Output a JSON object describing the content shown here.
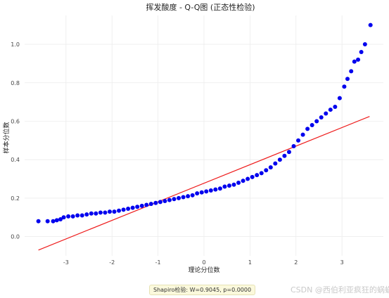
{
  "chart_data": {
    "type": "scatter",
    "title": "挥发酸度 - Q-Q图 (正态性检验)",
    "xlabel": "理论分位数",
    "ylabel": "样本分位数",
    "xlim": [
      -3.9,
      3.9
    ],
    "ylim": [
      -0.1,
      1.15
    ],
    "xticks": [
      -3,
      -2,
      -1,
      0,
      1,
      2,
      3
    ],
    "yticks": [
      0.0,
      0.2,
      0.4,
      0.6,
      0.8,
      1.0
    ],
    "ytick_labels": [
      "0.0",
      "0.2",
      "0.4",
      "0.6",
      "0.8",
      "1.0"
    ],
    "grid": true,
    "marker_color": "#0000ee",
    "line_color": "#ee1c1c",
    "reference_line": {
      "x": [
        -3.6,
        3.6
      ],
      "y": [
        -0.07,
        0.625
      ]
    },
    "points": [
      [
        -3.6,
        0.08
      ],
      [
        -3.4,
        0.08
      ],
      [
        -3.28,
        0.08
      ],
      [
        -3.2,
        0.085
      ],
      [
        -3.12,
        0.09
      ],
      [
        -3.05,
        0.1
      ],
      [
        -2.95,
        0.105
      ],
      [
        -2.85,
        0.105
      ],
      [
        -2.75,
        0.11
      ],
      [
        -2.65,
        0.11
      ],
      [
        -2.55,
        0.115
      ],
      [
        -2.45,
        0.12
      ],
      [
        -2.35,
        0.12
      ],
      [
        -2.25,
        0.125
      ],
      [
        -2.15,
        0.125
      ],
      [
        -2.05,
        0.13
      ],
      [
        -1.95,
        0.13
      ],
      [
        -1.85,
        0.135
      ],
      [
        -1.75,
        0.14
      ],
      [
        -1.65,
        0.145
      ],
      [
        -1.55,
        0.15
      ],
      [
        -1.45,
        0.155
      ],
      [
        -1.35,
        0.16
      ],
      [
        -1.25,
        0.165
      ],
      [
        -1.15,
        0.17
      ],
      [
        -1.05,
        0.175
      ],
      [
        -0.95,
        0.18
      ],
      [
        -0.85,
        0.185
      ],
      [
        -0.75,
        0.19
      ],
      [
        -0.65,
        0.195
      ],
      [
        -0.55,
        0.2
      ],
      [
        -0.45,
        0.205
      ],
      [
        -0.35,
        0.21
      ],
      [
        -0.25,
        0.215
      ],
      [
        -0.15,
        0.225
      ],
      [
        -0.05,
        0.23
      ],
      [
        0.05,
        0.235
      ],
      [
        0.15,
        0.24
      ],
      [
        0.25,
        0.245
      ],
      [
        0.35,
        0.25
      ],
      [
        0.45,
        0.26
      ],
      [
        0.55,
        0.265
      ],
      [
        0.65,
        0.27
      ],
      [
        0.75,
        0.28
      ],
      [
        0.85,
        0.29
      ],
      [
        0.95,
        0.3
      ],
      [
        1.05,
        0.31
      ],
      [
        1.15,
        0.32
      ],
      [
        1.25,
        0.33
      ],
      [
        1.35,
        0.345
      ],
      [
        1.45,
        0.36
      ],
      [
        1.55,
        0.38
      ],
      [
        1.65,
        0.4
      ],
      [
        1.75,
        0.42
      ],
      [
        1.85,
        0.44
      ],
      [
        1.95,
        0.47
      ],
      [
        2.05,
        0.5
      ],
      [
        2.15,
        0.53
      ],
      [
        2.25,
        0.56
      ],
      [
        2.35,
        0.58
      ],
      [
        2.45,
        0.6
      ],
      [
        2.55,
        0.62
      ],
      [
        2.65,
        0.64
      ],
      [
        2.75,
        0.66
      ],
      [
        2.85,
        0.675
      ],
      [
        2.95,
        0.72
      ],
      [
        3.05,
        0.78
      ],
      [
        3.12,
        0.82
      ],
      [
        3.2,
        0.86
      ],
      [
        3.27,
        0.91
      ],
      [
        3.35,
        0.92
      ],
      [
        3.42,
        0.96
      ],
      [
        3.5,
        1.0
      ],
      [
        3.62,
        1.1
      ]
    ]
  },
  "stat_text": "Shapiro检验: W=0.9045, p=0.0000",
  "watermark": "CSDN @西伯利亚疯狂的蜗蜗"
}
